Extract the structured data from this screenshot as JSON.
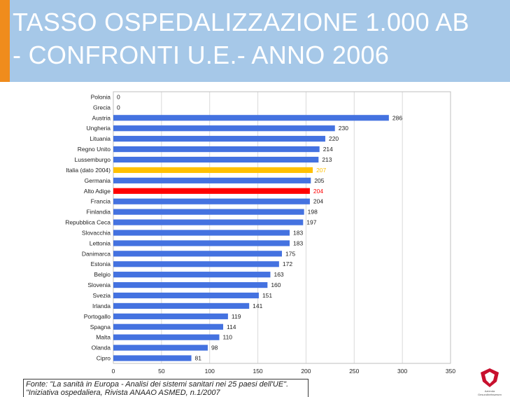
{
  "header": {
    "title_line1": "TASSO OSPEDALIZZAZIONE 1.000 AB",
    "title_line2": "- CONFRONTI U.E.- ANNO 2006"
  },
  "colors": {
    "title_band": "#a6c8e8",
    "accent_bar": "#f08c1c",
    "bar_default": "#4472e0",
    "bar_italia": "#ffc000",
    "bar_alto_adige": "#ff0000"
  },
  "chart_data": {
    "type": "bar",
    "orientation": "horizontal",
    "categories": [
      "Polonia",
      "Grecia",
      "Austria",
      "Ungheria",
      "Lituania",
      "Regno Unito",
      "Lussemburgo",
      "Italia (dato 2004)",
      "Germania",
      "Alto Adige",
      "Francia",
      "Finlandia",
      "Repubblica Ceca",
      "Slovacchia",
      "Lettonia",
      "Danimarca",
      "Estonia",
      "Belgio",
      "Slovenia",
      "Svezia",
      "Irlanda",
      "Portogallo",
      "Spagna",
      "Malta",
      "Olanda",
      "Cipro"
    ],
    "values": [
      0,
      0,
      286,
      230,
      220,
      214,
      213,
      207,
      205,
      204,
      204,
      198,
      197,
      183,
      183,
      175,
      172,
      163,
      160,
      151,
      141,
      119,
      114,
      110,
      98,
      81
    ],
    "highlight": {
      "Italia (dato 2004)": "#ffc000",
      "Alto Adige": "#ff0000"
    },
    "x_ticks": [
      "0",
      "50",
      "100",
      "150",
      "200",
      "250",
      "300",
      "350"
    ],
    "xlim": [
      0,
      350
    ],
    "grid": true
  },
  "source": {
    "text": "Fonte: \"La sanità in Europa - Analisi dei sistemi sanitari nei 25 paesi dell'UE\". \"Iniziativa ospedaliera, Rivista ANAAO ASMED, n.1/2007"
  },
  "logo": {
    "text1": "Azienda",
    "text2": "Gesundheitswesen"
  }
}
